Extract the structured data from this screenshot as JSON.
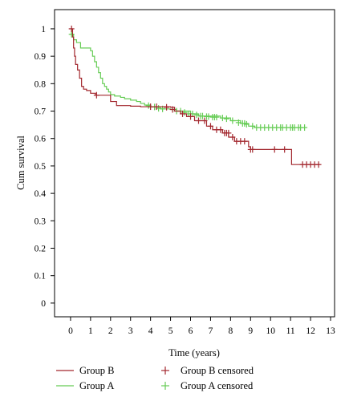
{
  "chart_data": {
    "type": "line",
    "subtype": "kaplan-meier",
    "title": "",
    "xlabel": "Time (years)",
    "ylabel": "Cum survival",
    "xlim": [
      -0.8,
      13.2
    ],
    "ylim": [
      -0.05,
      1.07
    ],
    "x_ticks": [
      0,
      1,
      2,
      3,
      4,
      5,
      6,
      7,
      8,
      9,
      10,
      11,
      12,
      13
    ],
    "y_ticks": [
      0,
      0.1,
      0.2,
      0.3,
      0.4,
      0.5,
      0.6,
      0.7,
      0.8,
      0.9,
      1
    ],
    "grid": false,
    "legend_position": "bottom",
    "legend": [
      {
        "label": "Group B",
        "kind": "line",
        "series": 0
      },
      {
        "label": "Group A",
        "kind": "line",
        "series": 1
      },
      {
        "label": "Group B censored",
        "kind": "censor",
        "series": 0
      },
      {
        "label": "Group A censored",
        "kind": "censor",
        "series": 1
      }
    ],
    "series": [
      {
        "name": "Group B",
        "color": "#a3282f",
        "steps": [
          [
            0,
            1
          ],
          [
            0.1,
            0.97
          ],
          [
            0.15,
            0.93
          ],
          [
            0.2,
            0.9
          ],
          [
            0.25,
            0.87
          ],
          [
            0.35,
            0.85
          ],
          [
            0.45,
            0.82
          ],
          [
            0.55,
            0.79
          ],
          [
            0.65,
            0.78
          ],
          [
            0.8,
            0.775
          ],
          [
            1,
            0.765
          ],
          [
            1.25,
            0.758
          ],
          [
            2,
            0.735
          ],
          [
            2.3,
            0.72
          ],
          [
            3,
            0.718
          ],
          [
            3.5,
            0.716
          ],
          [
            5,
            0.714
          ],
          [
            5.2,
            0.7
          ],
          [
            5.5,
            0.69
          ],
          [
            5.8,
            0.68
          ],
          [
            6.2,
            0.665
          ],
          [
            6.8,
            0.645
          ],
          [
            7.1,
            0.632
          ],
          [
            7.6,
            0.62
          ],
          [
            7.9,
            0.605
          ],
          [
            8.2,
            0.59
          ],
          [
            8.9,
            0.57
          ],
          [
            9,
            0.56
          ],
          [
            10.3,
            0.56
          ],
          [
            11.05,
            0.505
          ],
          [
            12.45,
            0.505
          ]
        ],
        "censored": [
          [
            0.05,
            1
          ],
          [
            1.3,
            0.758
          ],
          [
            4.0,
            0.716
          ],
          [
            4.3,
            0.716
          ],
          [
            4.8,
            0.714
          ],
          [
            5.1,
            0.706
          ],
          [
            5.6,
            0.69
          ],
          [
            6.0,
            0.68
          ],
          [
            6.4,
            0.665
          ],
          [
            6.7,
            0.665
          ],
          [
            7.0,
            0.645
          ],
          [
            7.3,
            0.632
          ],
          [
            7.5,
            0.632
          ],
          [
            7.7,
            0.62
          ],
          [
            7.8,
            0.62
          ],
          [
            7.9,
            0.62
          ],
          [
            8.1,
            0.605
          ],
          [
            8.3,
            0.59
          ],
          [
            8.5,
            0.59
          ],
          [
            8.7,
            0.59
          ],
          [
            9.0,
            0.56
          ],
          [
            9.1,
            0.56
          ],
          [
            10.2,
            0.56
          ],
          [
            10.7,
            0.56
          ],
          [
            11.6,
            0.505
          ],
          [
            11.8,
            0.505
          ],
          [
            12.0,
            0.505
          ],
          [
            12.2,
            0.505
          ],
          [
            12.4,
            0.505
          ]
        ]
      },
      {
        "name": "Group A",
        "color": "#66cc55",
        "steps": [
          [
            0,
            1
          ],
          [
            0.05,
            0.98
          ],
          [
            0.15,
            0.96
          ],
          [
            0.3,
            0.95
          ],
          [
            0.5,
            0.93
          ],
          [
            1,
            0.92
          ],
          [
            1.1,
            0.9
          ],
          [
            1.2,
            0.88
          ],
          [
            1.3,
            0.86
          ],
          [
            1.4,
            0.84
          ],
          [
            1.5,
            0.82
          ],
          [
            1.6,
            0.8
          ],
          [
            1.7,
            0.79
          ],
          [
            1.8,
            0.78
          ],
          [
            1.9,
            0.77
          ],
          [
            2,
            0.76
          ],
          [
            2.2,
            0.755
          ],
          [
            2.5,
            0.75
          ],
          [
            2.7,
            0.745
          ],
          [
            3,
            0.74
          ],
          [
            3.3,
            0.735
          ],
          [
            3.5,
            0.728
          ],
          [
            3.7,
            0.722
          ],
          [
            4,
            0.715
          ],
          [
            4.5,
            0.708
          ],
          [
            5,
            0.706
          ],
          [
            5.3,
            0.7
          ],
          [
            6,
            0.69
          ],
          [
            6.4,
            0.682
          ],
          [
            7.5,
            0.675
          ],
          [
            8,
            0.665
          ],
          [
            8.5,
            0.655
          ],
          [
            8.9,
            0.645
          ],
          [
            9.2,
            0.64
          ],
          [
            11.75,
            0.64
          ]
        ],
        "censored": [
          [
            0.05,
            0.98
          ],
          [
            3.9,
            0.72
          ],
          [
            4.2,
            0.715
          ],
          [
            4.4,
            0.71
          ],
          [
            4.6,
            0.708
          ],
          [
            5.3,
            0.7
          ],
          [
            5.5,
            0.7
          ],
          [
            5.7,
            0.695
          ],
          [
            5.9,
            0.69
          ],
          [
            6.1,
            0.69
          ],
          [
            6.3,
            0.686
          ],
          [
            6.5,
            0.682
          ],
          [
            6.6,
            0.682
          ],
          [
            6.8,
            0.68
          ],
          [
            6.9,
            0.68
          ],
          [
            7.1,
            0.678
          ],
          [
            7.2,
            0.678
          ],
          [
            7.3,
            0.678
          ],
          [
            7.6,
            0.675
          ],
          [
            7.8,
            0.672
          ],
          [
            8.1,
            0.665
          ],
          [
            8.4,
            0.658
          ],
          [
            8.6,
            0.655
          ],
          [
            8.7,
            0.655
          ],
          [
            8.8,
            0.652
          ],
          [
            9.1,
            0.645
          ],
          [
            9.3,
            0.64
          ],
          [
            9.5,
            0.64
          ],
          [
            9.7,
            0.64
          ],
          [
            9.9,
            0.64
          ],
          [
            10.1,
            0.64
          ],
          [
            10.3,
            0.64
          ],
          [
            10.5,
            0.64
          ],
          [
            10.6,
            0.64
          ],
          [
            10.8,
            0.64
          ],
          [
            11.0,
            0.64
          ],
          [
            11.1,
            0.64
          ],
          [
            11.2,
            0.64
          ],
          [
            11.4,
            0.64
          ],
          [
            11.5,
            0.64
          ],
          [
            11.7,
            0.64
          ]
        ]
      }
    ]
  }
}
